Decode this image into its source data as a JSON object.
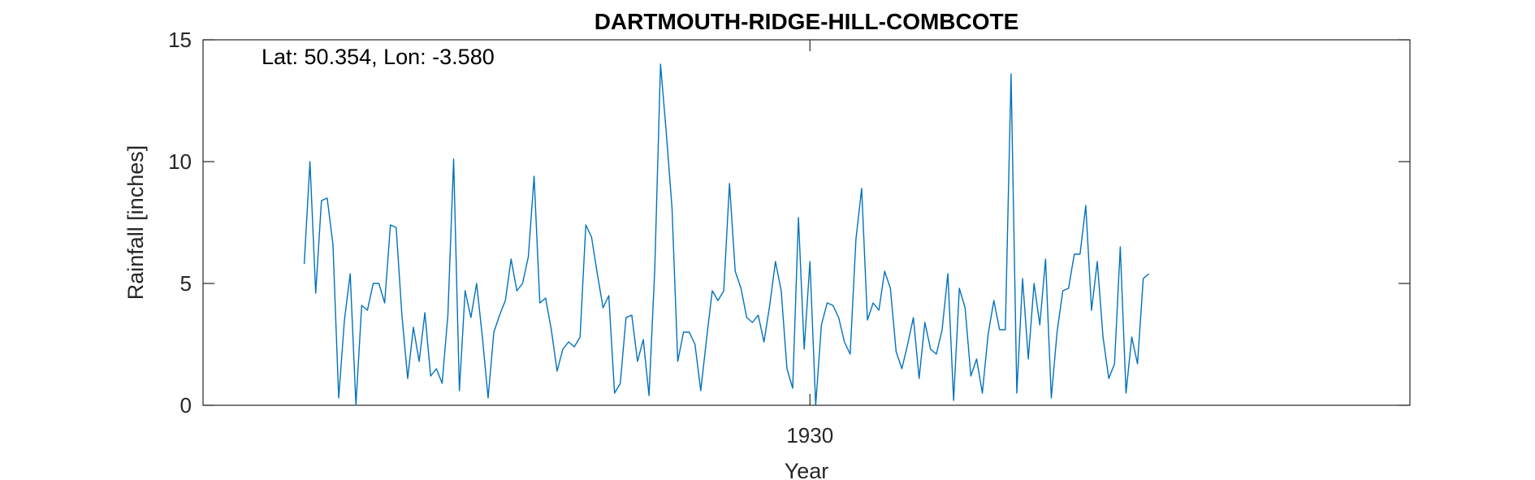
{
  "chart_data": {
    "type": "line",
    "title": "DARTMOUTH-RIDGE-HILL-COMBCOTE",
    "annotation": "Lat: 50.354, Lon: -3.580",
    "xlabel": "Year",
    "ylabel": "Rainfall [inches]",
    "xlim": [
      1921.2,
      1938.7
    ],
    "ylim": [
      0,
      15
    ],
    "x_ticks": [
      1930
    ],
    "x_tick_labels": [
      "1930"
    ],
    "y_ticks": [
      0,
      5,
      10,
      15
    ],
    "y_tick_labels": [
      "0",
      "5",
      "10",
      "15"
    ],
    "grid": false,
    "box": true,
    "x_start": 1922.667,
    "x_step": 0.08333,
    "series": [
      {
        "color": "#0072BD",
        "values": [
          5.8,
          10.0,
          4.6,
          8.4,
          8.5,
          6.6,
          0.3,
          3.5,
          5.4,
          0.0,
          4.1,
          3.9,
          5.0,
          5.0,
          4.2,
          7.4,
          7.3,
          3.7,
          1.1,
          3.2,
          1.8,
          3.8,
          1.2,
          1.5,
          0.9,
          3.7,
          10.1,
          0.6,
          4.7,
          3.6,
          5.0,
          2.8,
          0.3,
          3.0,
          3.7,
          4.3,
          6.0,
          4.7,
          5.0,
          6.1,
          9.4,
          4.2,
          4.4,
          3.1,
          1.4,
          2.3,
          2.6,
          2.4,
          2.8,
          7.4,
          6.9,
          5.4,
          4.0,
          4.5,
          0.5,
          0.9,
          3.6,
          3.7,
          1.8,
          2.7,
          0.4,
          5.6,
          14.0,
          11.2,
          8.1,
          1.8,
          3.0,
          3.0,
          2.5,
          0.6,
          2.7,
          4.7,
          4.3,
          4.7,
          9.1,
          5.5,
          4.8,
          3.6,
          3.4,
          3.7,
          2.6,
          4.1,
          5.9,
          4.7,
          1.5,
          0.7,
          7.7,
          2.3,
          5.9,
          0.0,
          3.3,
          4.2,
          4.1,
          3.6,
          2.6,
          2.1,
          6.8,
          8.9,
          3.5,
          4.2,
          3.9,
          5.5,
          4.8,
          2.2,
          1.5,
          2.5,
          3.6,
          1.1,
          3.4,
          2.3,
          2.1,
          3.1,
          5.4,
          0.2,
          4.8,
          4.0,
          1.2,
          1.9,
          0.5,
          2.9,
          4.3,
          3.1,
          3.1,
          13.6,
          0.5,
          5.2,
          1.9,
          5.0,
          3.3,
          6.0,
          0.3,
          3.0,
          4.7,
          4.8,
          6.2,
          6.2,
          8.2,
          3.9,
          5.9,
          2.8,
          1.1,
          1.7,
          6.5,
          0.5,
          2.8,
          1.7,
          5.2,
          5.4
        ]
      }
    ]
  }
}
